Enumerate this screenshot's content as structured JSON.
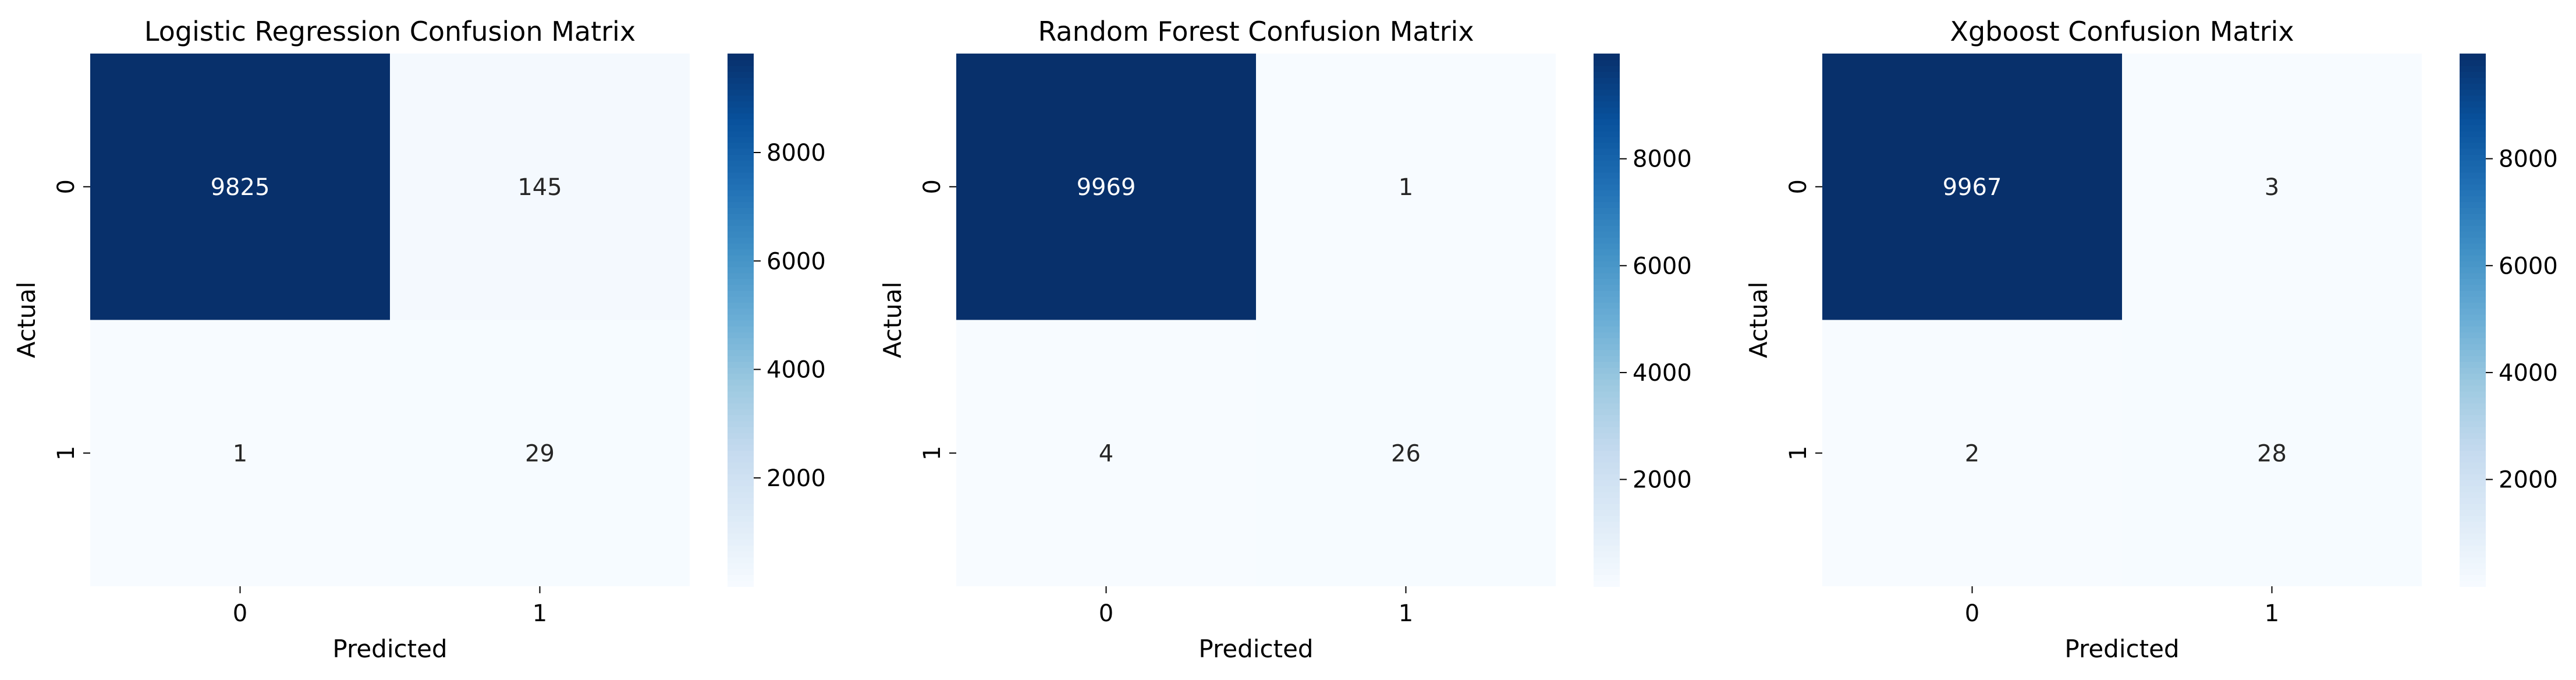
{
  "chart_data": [
    {
      "type": "heatmap",
      "title": "Logistic Regression Confusion Matrix",
      "xlabel": "Predicted",
      "ylabel": "Actual",
      "x_categories": [
        "0",
        "1"
      ],
      "y_categories": [
        "0",
        "1"
      ],
      "values": [
        [
          9825,
          145
        ],
        [
          1,
          29
        ]
      ],
      "colorbar": {
        "range": [
          1,
          9825
        ],
        "ticks": [
          2000,
          4000,
          6000,
          8000
        ],
        "tick_labels": [
          "2000",
          "4000",
          "6000",
          "8000"
        ]
      }
    },
    {
      "type": "heatmap",
      "title": "Random Forest Confusion Matrix",
      "xlabel": "Predicted",
      "ylabel": "Actual",
      "x_categories": [
        "0",
        "1"
      ],
      "y_categories": [
        "0",
        "1"
      ],
      "values": [
        [
          9969,
          1
        ],
        [
          4,
          26
        ]
      ],
      "colorbar": {
        "range": [
          1,
          9969
        ],
        "ticks": [
          2000,
          4000,
          6000,
          8000
        ],
        "tick_labels": [
          "2000",
          "4000",
          "6000",
          "8000"
        ]
      }
    },
    {
      "type": "heatmap",
      "title": "Xgboost Confusion Matrix",
      "xlabel": "Predicted",
      "ylabel": "Actual",
      "x_categories": [
        "0",
        "1"
      ],
      "y_categories": [
        "0",
        "1"
      ],
      "values": [
        [
          9967,
          3
        ],
        [
          2,
          28
        ]
      ],
      "colorbar": {
        "range": [
          2,
          9967
        ],
        "ticks": [
          2000,
          4000,
          6000,
          8000
        ],
        "tick_labels": [
          "2000",
          "4000",
          "6000",
          "8000"
        ]
      }
    }
  ],
  "colormap": {
    "name": "Blues",
    "low": "#f7fbff",
    "high": "#08306b"
  }
}
